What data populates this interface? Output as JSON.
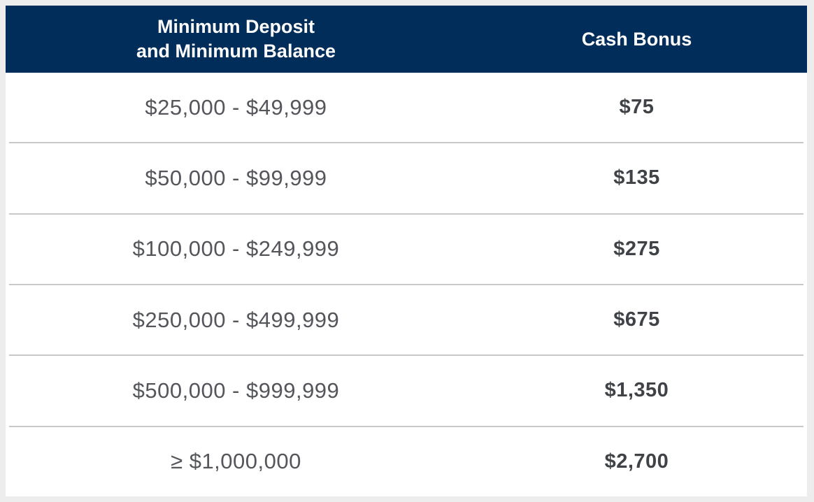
{
  "header": {
    "col1_line1": "Minimum Deposit",
    "col1_line2": "and Minimum Balance",
    "col2": "Cash Bonus"
  },
  "rows": [
    {
      "range": "$25,000 - $49,999",
      "bonus": "$75"
    },
    {
      "range": "$50,000 - $99,999",
      "bonus": "$135"
    },
    {
      "range": "$100,000 - $249,999",
      "bonus": "$275"
    },
    {
      "range": "$250,000 - $499,999",
      "bonus": "$675"
    },
    {
      "range": "$500,000 - $999,999",
      "bonus": "$1,350"
    },
    {
      "range": "≥ $1,000,000",
      "bonus": "$2,700"
    }
  ],
  "colors": {
    "header_bg": "#012d5a",
    "header_text": "#ffffff",
    "range_text": "#54565b",
    "bonus_text": "#3f4247",
    "divider": "#c9c9ca",
    "frame_bg": "#ededee",
    "table_bg": "#ffffff"
  },
  "chart_data": {
    "type": "table",
    "title": "",
    "columns": [
      "Minimum Deposit and Minimum Balance",
      "Cash Bonus"
    ],
    "rows": [
      [
        "$25,000 - $49,999",
        "$75"
      ],
      [
        "$50,000 - $99,999",
        "$135"
      ],
      [
        "$100,000 - $249,999",
        "$275"
      ],
      [
        "$250,000 - $499,999",
        "$675"
      ],
      [
        "$500,000 - $999,999",
        "$1,350"
      ],
      [
        "≥ $1,000,000",
        "$2,700"
      ]
    ],
    "deposit_tier_minimums": [
      25000,
      50000,
      100000,
      250000,
      500000,
      1000000
    ],
    "deposit_tier_maximums": [
      49999,
      99999,
      249999,
      499999,
      999999,
      null
    ],
    "bonus_values_numeric": [
      75,
      135,
      275,
      675,
      1350,
      2700
    ]
  }
}
